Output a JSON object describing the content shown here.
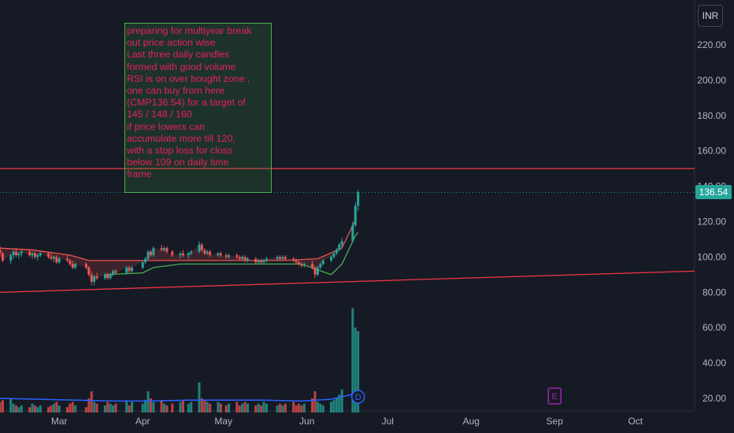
{
  "header": {
    "currency": "INR"
  },
  "annotation": {
    "lines": [
      "preparing for multiyear break",
      "out price action wise",
      "Last three daily candles",
      "formed with good volume",
      "RSI is on over bought zone ,",
      "one can buy from here",
      "(CMP136.54) for a target of",
      "145 / 148 / 160",
      "if price  lowers can",
      "accumulate  more till 120,",
      "with a stop loss for closs",
      "below 109 on daily time",
      "frame"
    ]
  },
  "last_price_label": "136.54",
  "markers": {
    "dividend": "D",
    "earnings": "E"
  },
  "colors": {
    "background": "#161a25",
    "up": "#26a69a",
    "down": "#ef5350",
    "annotation_text": "#e91e63",
    "annotation_border": "#4caf50",
    "horizontal_line": "#f23645",
    "trend_line": "#f23645",
    "volume_ma": "#2962ff",
    "dividend_marker": "#2962ff",
    "earnings_marker": "#9c27b0"
  },
  "chart_data": {
    "type": "candlestick",
    "y_axis": {
      "side": "right",
      "ticks": [
        "220.00",
        "200.00",
        "180.00",
        "160.00",
        "140.00",
        "120.00",
        "100.00",
        "80.00",
        "60.00",
        "40.00",
        "20.00"
      ],
      "tick_values": [
        220,
        200,
        180,
        160,
        140,
        120,
        100,
        80,
        60,
        40,
        20
      ]
    },
    "x_axis": {
      "ticks": [
        "Mar",
        "Apr",
        "May",
        "Jun",
        "Jul",
        "Aug",
        "Sep",
        "Oct"
      ],
      "tick_dates": [
        "2024-03-01",
        "2024-04-01",
        "2024-05-01",
        "2024-06-01",
        "2024-07-01",
        "2024-08-01",
        "2024-09-01",
        "2024-10-01"
      ],
      "range": [
        "2024-02-08",
        "2024-10-23"
      ]
    },
    "y_range": [
      12,
      232
    ],
    "last_price": 136.54,
    "horizontal_lines": [
      {
        "value": 150
      }
    ],
    "trend_line": {
      "points": [
        [
          "2024-02-08",
          80
        ],
        [
          "2024-10-23",
          92
        ]
      ]
    },
    "candles_key": [
      "date",
      "open",
      "high",
      "low",
      "close"
    ],
    "candles": [
      [
        "2024-02-08",
        104,
        106,
        100,
        102
      ],
      [
        "2024-02-09",
        102,
        103,
        97,
        98
      ],
      [
        "2024-02-12",
        98,
        102,
        96,
        101
      ],
      [
        "2024-02-13",
        101,
        104,
        99,
        103
      ],
      [
        "2024-02-14",
        103,
        105,
        100,
        101
      ],
      [
        "2024-02-15",
        101,
        103,
        99,
        102
      ],
      [
        "2024-02-16",
        102,
        104,
        100,
        103
      ],
      [
        "2024-02-19",
        103,
        104,
        100,
        101
      ],
      [
        "2024-02-20",
        101,
        103,
        99,
        102
      ],
      [
        "2024-02-21",
        102,
        103,
        99,
        100
      ],
      [
        "2024-02-22",
        100,
        102,
        98,
        101
      ],
      [
        "2024-02-23",
        101,
        103,
        100,
        102
      ],
      [
        "2024-02-26",
        102,
        103,
        99,
        100
      ],
      [
        "2024-02-27",
        100,
        102,
        98,
        99
      ],
      [
        "2024-02-28",
        99,
        101,
        97,
        100
      ],
      [
        "2024-02-29",
        100,
        101,
        96,
        97
      ],
      [
        "2024-03-01",
        97,
        100,
        96,
        99
      ],
      [
        "2024-03-04",
        99,
        101,
        97,
        98
      ],
      [
        "2024-03-05",
        98,
        99,
        95,
        96
      ],
      [
        "2024-03-06",
        96,
        98,
        93,
        94
      ],
      [
        "2024-03-07",
        94,
        97,
        93,
        96
      ],
      [
        "2024-03-11",
        96,
        97,
        93,
        94
      ],
      [
        "2024-03-12",
        94,
        95,
        89,
        90
      ],
      [
        "2024-03-13",
        90,
        92,
        84,
        86
      ],
      [
        "2024-03-14",
        86,
        90,
        84,
        89
      ],
      [
        "2024-03-15",
        89,
        91,
        87,
        88
      ],
      [
        "2024-03-18",
        88,
        91,
        87,
        90
      ],
      [
        "2024-03-19",
        90,
        91,
        87,
        88
      ],
      [
        "2024-03-20",
        88,
        91,
        87,
        90
      ],
      [
        "2024-03-21",
        90,
        93,
        89,
        92
      ],
      [
        "2024-03-22",
        92,
        93,
        90,
        91
      ],
      [
        "2024-03-26",
        91,
        95,
        90,
        94
      ],
      [
        "2024-03-27",
        94,
        95,
        91,
        92
      ],
      [
        "2024-03-28",
        92,
        95,
        91,
        94
      ],
      [
        "2024-04-01",
        94,
        98,
        93,
        97
      ],
      [
        "2024-04-02",
        97,
        100,
        96,
        99
      ],
      [
        "2024-04-03",
        99,
        104,
        98,
        103
      ],
      [
        "2024-04-04",
        103,
        104,
        100,
        101
      ],
      [
        "2024-04-05",
        101,
        106,
        100,
        105
      ],
      [
        "2024-04-08",
        105,
        107,
        103,
        104
      ],
      [
        "2024-04-09",
        104,
        106,
        103,
        105
      ],
      [
        "2024-04-10",
        105,
        106,
        102,
        103
      ],
      [
        "2024-04-12",
        103,
        104,
        100,
        101
      ],
      [
        "2024-04-15",
        101,
        103,
        99,
        102
      ],
      [
        "2024-04-16",
        102,
        104,
        100,
        101
      ],
      [
        "2024-04-18",
        101,
        103,
        99,
        102
      ],
      [
        "2024-04-19",
        102,
        104,
        101,
        103
      ],
      [
        "2024-04-22",
        103,
        109,
        102,
        107
      ],
      [
        "2024-04-23",
        107,
        108,
        103,
        104
      ],
      [
        "2024-04-24",
        104,
        105,
        101,
        102
      ],
      [
        "2024-04-25",
        102,
        104,
        101,
        103
      ],
      [
        "2024-04-26",
        103,
        104,
        100,
        101
      ],
      [
        "2024-04-29",
        101,
        103,
        100,
        102
      ],
      [
        "2024-04-30",
        102,
        103,
        100,
        101
      ],
      [
        "2024-05-02",
        101,
        102,
        99,
        100
      ],
      [
        "2024-05-03",
        100,
        102,
        99,
        101
      ],
      [
        "2024-05-06",
        101,
        102,
        99,
        100
      ],
      [
        "2024-05-07",
        100,
        101,
        98,
        99
      ],
      [
        "2024-05-08",
        99,
        101,
        98,
        100
      ],
      [
        "2024-05-09",
        100,
        101,
        97,
        98
      ],
      [
        "2024-05-10",
        98,
        100,
        97,
        99
      ],
      [
        "2024-05-13",
        99,
        100,
        96,
        97
      ],
      [
        "2024-05-14",
        97,
        99,
        96,
        98
      ],
      [
        "2024-05-15",
        98,
        99,
        96,
        97
      ],
      [
        "2024-05-16",
        97,
        99,
        96,
        98
      ],
      [
        "2024-05-17",
        98,
        100,
        97,
        99
      ],
      [
        "2024-05-21",
        99,
        101,
        98,
        100
      ],
      [
        "2024-05-22",
        100,
        101,
        98,
        99
      ],
      [
        "2024-05-23",
        99,
        101,
        98,
        100
      ],
      [
        "2024-05-24",
        100,
        101,
        98,
        99
      ],
      [
        "2024-05-27",
        99,
        100,
        97,
        98
      ],
      [
        "2024-05-28",
        98,
        99,
        96,
        97
      ],
      [
        "2024-05-29",
        97,
        98,
        95,
        96
      ],
      [
        "2024-05-30",
        96,
        97,
        94,
        95
      ],
      [
        "2024-05-31",
        95,
        97,
        94,
        96
      ],
      [
        "2024-06-03",
        96,
        98,
        93,
        94
      ],
      [
        "2024-06-04",
        94,
        95,
        88,
        90
      ],
      [
        "2024-06-05",
        90,
        95,
        89,
        94
      ],
      [
        "2024-06-06",
        94,
        97,
        93,
        96
      ],
      [
        "2024-06-07",
        96,
        99,
        95,
        98
      ],
      [
        "2024-06-10",
        98,
        101,
        97,
        100
      ],
      [
        "2024-06-11",
        100,
        103,
        99,
        102
      ],
      [
        "2024-06-12",
        102,
        105,
        101,
        104
      ],
      [
        "2024-06-13",
        104,
        108,
        103,
        107
      ],
      [
        "2024-06-14",
        107,
        111,
        105,
        109
      ],
      [
        "2024-06-18",
        109,
        120,
        108,
        118
      ],
      [
        "2024-06-19",
        118,
        131,
        117,
        129
      ],
      [
        "2024-06-20",
        129,
        138,
        126,
        136.54
      ]
    ],
    "volume_ma": [
      [
        "2024-02-08",
        20
      ],
      [
        "2024-02-22",
        19.5
      ],
      [
        "2024-03-07",
        19
      ],
      [
        "2024-03-21",
        18.5
      ],
      [
        "2024-04-04",
        18.5
      ],
      [
        "2024-04-18",
        19
      ],
      [
        "2024-05-02",
        19
      ],
      [
        "2024-05-16",
        19
      ],
      [
        "2024-05-30",
        18.5
      ],
      [
        "2024-06-10",
        19.5
      ],
      [
        "2024-06-20",
        23
      ]
    ],
    "volumes": [
      18,
      19,
      20,
      17,
      16,
      15,
      16,
      15,
      17,
      16,
      15,
      16,
      15,
      16,
      17,
      18,
      16,
      15,
      17,
      18,
      16,
      15,
      20,
      24,
      18,
      17,
      16,
      18,
      17,
      16,
      17,
      19,
      16,
      18,
      17,
      19,
      24,
      20,
      18,
      19,
      17,
      16,
      17,
      18,
      19,
      17,
      18,
      29,
      20,
      19,
      18,
      17,
      18,
      17,
      16,
      17,
      18,
      16,
      17,
      18,
      17,
      16,
      17,
      16,
      18,
      17,
      16,
      17,
      16,
      17,
      18,
      16,
      17,
      16,
      17,
      20,
      24,
      18,
      17,
      16,
      18,
      19,
      20,
      22,
      25,
      71,
      60,
      58
    ],
    "ma_band_lower": [
      [
        "2024-03-18",
        90
      ],
      [
        "2024-04-01",
        91
      ],
      [
        "2024-04-05",
        94
      ],
      [
        "2024-04-15",
        96
      ],
      [
        "2024-05-02",
        96
      ],
      [
        "2024-05-30",
        96
      ],
      [
        "2024-06-10",
        90
      ],
      [
        "2024-06-14",
        96
      ],
      [
        "2024-06-19",
        112
      ],
      [
        "2024-06-20",
        114
      ]
    ],
    "ma_band_upper": [
      [
        "2024-02-08",
        105
      ],
      [
        "2024-02-20",
        104
      ],
      [
        "2024-03-05",
        101
      ],
      [
        "2024-03-12",
        98
      ],
      [
        "2024-03-28",
        98
      ],
      [
        "2024-05-23",
        98
      ],
      [
        "2024-06-05",
        99
      ],
      [
        "2024-06-14",
        105
      ],
      [
        "2024-06-19",
        121
      ]
    ],
    "event_markers": [
      {
        "date": "2024-06-20",
        "label": "D"
      },
      {
        "date": "2024-09-01",
        "label": "E"
      }
    ]
  }
}
